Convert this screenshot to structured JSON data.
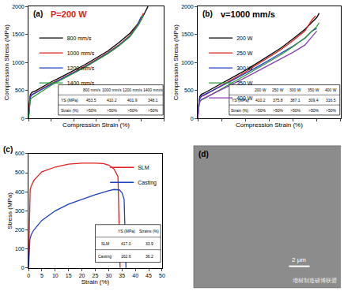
{
  "chart_data": [
    {
      "type": "line",
      "annotations": [
        {
          "text": "(a)"
        },
        {
          "text": "P=200 W",
          "color": "#e02020"
        }
      ],
      "x_label": "Compression Strain (%)",
      "y_label": "Compression Stress (MPa)",
      "xlim": [
        0,
        60
      ],
      "xticks": [
        0,
        10,
        20,
        30,
        40,
        50,
        60
      ],
      "ylim": [
        0,
        2000
      ],
      "yticks": [
        0,
        500,
        1000,
        1500,
        2000
      ],
      "tick_labels": "y",
      "grid": false,
      "legend": "upper left",
      "series": [
        {
          "name": "800 mm/s",
          "color": "#000000",
          "x": [
            0,
            0.3,
            0.8,
            1.5,
            3,
            6,
            10,
            15,
            20,
            25,
            30,
            35,
            40,
            45,
            50,
            53
          ],
          "values": [
            0,
            250,
            430,
            465,
            490,
            560,
            650,
            750,
            850,
            960,
            1080,
            1200,
            1350,
            1520,
            1760,
            2000
          ]
        },
        {
          "name": "1000 mm/s",
          "color": "#e02020",
          "x": [
            0,
            0.3,
            0.8,
            1.5,
            3,
            6,
            10,
            15,
            20,
            25,
            30,
            35,
            40,
            45,
            49,
            51
          ],
          "values": [
            0,
            220,
            390,
            430,
            460,
            530,
            620,
            720,
            820,
            930,
            1050,
            1170,
            1310,
            1480,
            1720,
            1880
          ]
        },
        {
          "name": "1200 mm/s",
          "color": "#1f3fbf",
          "x": [
            0,
            0.3,
            0.8,
            1.5,
            3,
            6,
            10,
            15,
            20,
            25,
            30,
            35,
            40,
            45,
            48,
            50
          ],
          "values": [
            0,
            210,
            380,
            420,
            450,
            520,
            610,
            710,
            810,
            920,
            1040,
            1160,
            1300,
            1470,
            1640,
            1820
          ]
        },
        {
          "name": "1400 mm/s",
          "color": "#2e9a3a",
          "x": [
            0,
            0.3,
            0.8,
            1.5,
            3,
            6,
            10,
            15,
            20,
            25,
            30,
            35,
            40,
            45,
            49,
            51
          ],
          "values": [
            0,
            180,
            330,
            370,
            410,
            490,
            590,
            700,
            800,
            910,
            1030,
            1150,
            1290,
            1460,
            1680,
            1850
          ]
        }
      ],
      "table": {
        "header": [
          "",
          "800 mm/s",
          "1000 mm/s",
          "1200 mm/s",
          "1400 mm/s"
        ],
        "rows": [
          [
            "YS (MPa)",
            "453.5",
            "410.2",
            "401.9",
            "348.1"
          ],
          [
            "Strain (%)",
            ">50%",
            ">50%",
            ">50%",
            ">50%"
          ]
        ]
      }
    },
    {
      "type": "line",
      "annotations": [
        {
          "text": "(b)"
        },
        {
          "text": "v=1000 mm/s"
        }
      ],
      "x_label": "Compression Strain (%)",
      "y_label": "Compression Stress (MPa)",
      "xlim": [
        0,
        60
      ],
      "xticks": [
        0,
        10,
        20,
        30,
        40,
        50,
        60
      ],
      "ylim": [
        0,
        2000
      ],
      "yticks": [
        0,
        500,
        1000,
        1500,
        2000
      ],
      "tick_labels": "y",
      "grid": false,
      "legend": "upper left",
      "series": [
        {
          "name": "200 W",
          "color": "#000000",
          "x": [
            0,
            0.3,
            0.8,
            1.5,
            3,
            6,
            10,
            15,
            20,
            25,
            30,
            35,
            40,
            45,
            50,
            51
          ],
          "values": [
            0,
            220,
            390,
            430,
            460,
            530,
            620,
            740,
            860,
            990,
            1120,
            1260,
            1420,
            1590,
            1800,
            1880
          ]
        },
        {
          "name": "250 W",
          "color": "#e02020",
          "x": [
            0,
            0.3,
            0.8,
            1.5,
            3,
            6,
            10,
            15,
            20,
            25,
            30,
            35,
            40,
            45,
            48,
            49.5
          ],
          "values": [
            0,
            200,
            350,
            390,
            420,
            490,
            590,
            710,
            830,
            960,
            1090,
            1230,
            1390,
            1560,
            1760,
            1830
          ]
        },
        {
          "name": "300 W",
          "color": "#1f3fbf",
          "x": [
            0,
            0.3,
            0.8,
            1.5,
            3,
            6,
            10,
            15,
            20,
            25,
            30,
            35,
            40,
            45,
            48,
            50
          ],
          "values": [
            0,
            210,
            360,
            400,
            430,
            490,
            580,
            690,
            800,
            920,
            1040,
            1160,
            1290,
            1430,
            1560,
            1610
          ]
        },
        {
          "name": "350 W",
          "color": "#2e9a3a",
          "x": [
            0,
            0.3,
            0.8,
            1.5,
            3,
            6,
            10,
            15,
            20,
            25,
            30,
            35,
            40,
            45,
            50,
            51
          ],
          "values": [
            0,
            170,
            290,
            330,
            360,
            430,
            530,
            650,
            770,
            890,
            1010,
            1140,
            1280,
            1440,
            1640,
            1710
          ]
        },
        {
          "name": "400 W",
          "color": "#8a3fb5",
          "x": [
            0,
            0.3,
            0.8,
            1.5,
            3,
            6,
            10,
            15,
            20,
            25,
            30,
            35,
            40,
            45,
            48,
            50
          ],
          "values": [
            0,
            180,
            300,
            340,
            370,
            430,
            520,
            620,
            730,
            840,
            950,
            1060,
            1180,
            1310,
            1460,
            1560
          ]
        }
      ],
      "table": {
        "header": [
          "",
          "200 W",
          "250 W",
          "300 W",
          "350 W",
          "400 W"
        ],
        "rows": [
          [
            "YS (MPa)",
            "410.2",
            "375.8",
            "387.1",
            "309.4",
            "316.5"
          ],
          [
            "Strain (%)",
            ">50%",
            ">50%",
            ">50%",
            ">50%",
            ">50%"
          ]
        ]
      }
    },
    {
      "type": "line",
      "annotations": [
        {
          "text": "(c)"
        }
      ],
      "x_label": "Strain (%)",
      "y_label": "Stress (MPa)",
      "xlim": [
        0,
        50
      ],
      "xticks": [
        0,
        5,
        10,
        15,
        20,
        25,
        30,
        35,
        40,
        45,
        50
      ],
      "ylim": [
        0,
        600
      ],
      "yticks": [
        0,
        100,
        200,
        300,
        400,
        500,
        600
      ],
      "grid": false,
      "legend": "upper right",
      "series": [
        {
          "name": "SLM",
          "color": "#e02020",
          "x": [
            0,
            0.3,
            0.6,
            1,
            2,
            5,
            10,
            15,
            20,
            25,
            28,
            30,
            32,
            33.5,
            34,
            34.3
          ],
          "values": [
            0,
            300,
            410,
            430,
            460,
            505,
            530,
            545,
            550,
            550,
            548,
            540,
            520,
            480,
            200,
            0
          ]
        },
        {
          "name": "Casting",
          "color": "#1f3fbf",
          "x": [
            0,
            0.5,
            1,
            2,
            5,
            10,
            15,
            20,
            25,
            30,
            32,
            34,
            35,
            35.8,
            36.2,
            36.5
          ],
          "values": [
            0,
            150,
            175,
            200,
            250,
            300,
            335,
            360,
            385,
            405,
            412,
            410,
            395,
            360,
            150,
            0
          ]
        }
      ],
      "table": {
        "header": [
          "",
          "YS (MPa)",
          "Strains (%)"
        ],
        "rows": [
          [
            "SLM",
            "417.0",
            "33.9"
          ],
          [
            "Casting",
            "162.6",
            "36.2"
          ]
        ]
      }
    }
  ],
  "image_panel": {
    "label": "(d)",
    "scale_bar": "2 μm"
  },
  "watermark": "增材制造硕博联盟"
}
